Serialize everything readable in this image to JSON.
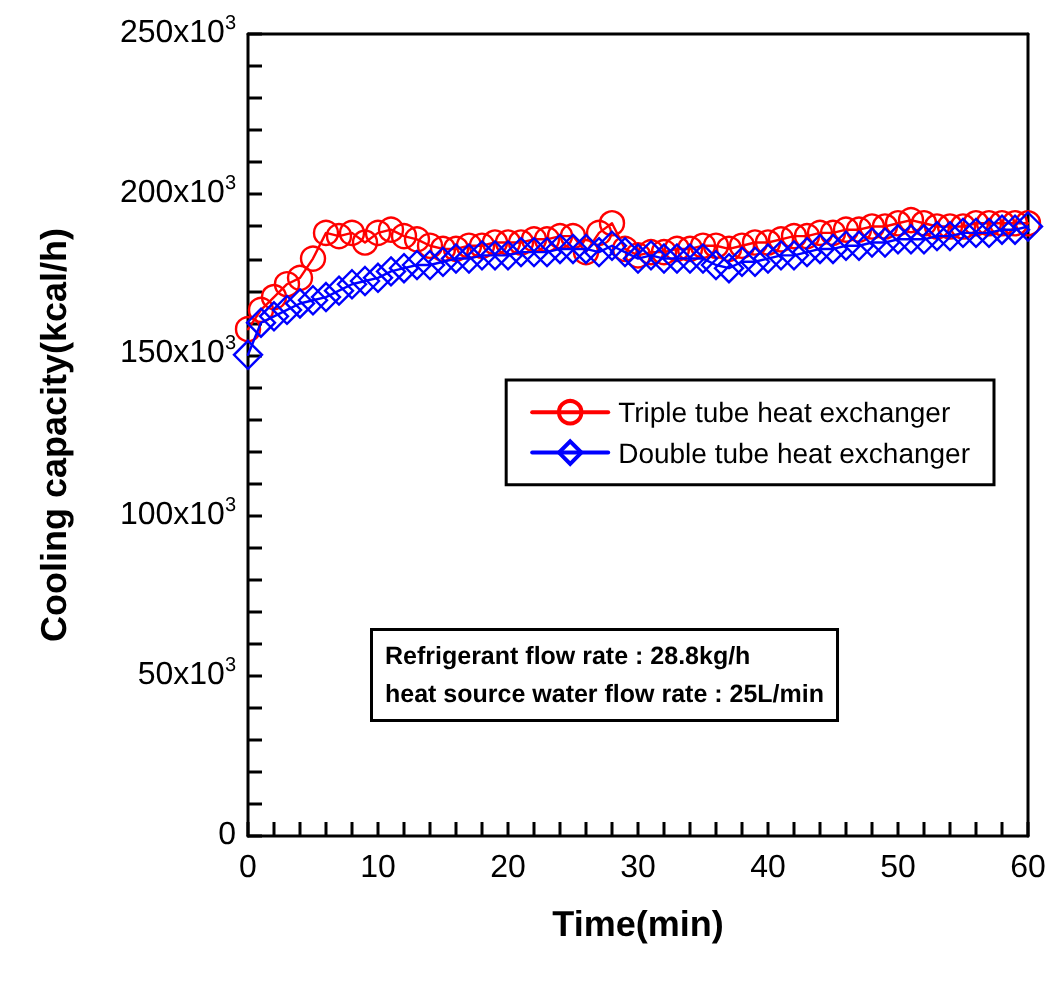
{
  "chart_data": {
    "type": "line",
    "xlabel": "Time(min)",
    "ylabel": "Cooling capacity(kcal/h)",
    "x": [
      0,
      1,
      2,
      3,
      4,
      5,
      6,
      7,
      8,
      9,
      10,
      11,
      12,
      13,
      14,
      15,
      16,
      17,
      18,
      19,
      20,
      21,
      22,
      23,
      24,
      25,
      26,
      27,
      28,
      29,
      30,
      31,
      32,
      33,
      34,
      35,
      36,
      37,
      38,
      39,
      40,
      41,
      42,
      43,
      44,
      45,
      46,
      47,
      48,
      49,
      50,
      51,
      52,
      53,
      54,
      55,
      56,
      57,
      58,
      59,
      60
    ],
    "series": [
      {
        "name": "Triple tube heat exchanger",
        "color": "#ff0000",
        "marker": "circle",
        "values": [
          158000,
          164000,
          168000,
          172000,
          174000,
          180000,
          188000,
          187000,
          188000,
          185000,
          188000,
          189000,
          187000,
          186000,
          184000,
          183000,
          183000,
          184000,
          184000,
          185000,
          185000,
          185000,
          186000,
          186000,
          187000,
          187000,
          182000,
          188000,
          191000,
          183000,
          181000,
          182000,
          182000,
          183000,
          183000,
          184000,
          184000,
          183000,
          184000,
          185000,
          185000,
          186000,
          187000,
          187000,
          188000,
          188000,
          189000,
          189000,
          190000,
          190000,
          191000,
          192000,
          191000,
          190000,
          190000,
          190000,
          191000,
          191000,
          191000,
          191000,
          191000
        ]
      },
      {
        "name": "Double tube heat exchanger",
        "color": "#0000ff",
        "marker": "diamond",
        "values": [
          150000,
          160000,
          162000,
          164000,
          166000,
          167000,
          168000,
          170000,
          172000,
          173000,
          174000,
          176000,
          177000,
          178000,
          178000,
          179000,
          180000,
          180000,
          181000,
          181000,
          181000,
          182000,
          182000,
          182000,
          183000,
          183000,
          183000,
          182000,
          184000,
          182000,
          180000,
          181000,
          180000,
          180000,
          180000,
          180000,
          178000,
          177000,
          179000,
          179000,
          180000,
          181000,
          181000,
          182000,
          183000,
          183000,
          184000,
          184000,
          185000,
          185000,
          186000,
          186000,
          186000,
          187000,
          187000,
          188000,
          188000,
          188000,
          189000,
          189000,
          190000
        ]
      }
    ],
    "xlim": [
      0,
      60
    ],
    "xticks": [
      0,
      10,
      20,
      30,
      40,
      50,
      60
    ],
    "ylim": [
      0,
      250000
    ],
    "yticks": [
      {
        "value": 0,
        "label": "0"
      },
      {
        "value": 50000,
        "label": "50x10$^{3}$"
      },
      {
        "value": 100000,
        "label": "100x10$^{3}$"
      },
      {
        "value": 150000,
        "label": "150x10$^{3}$"
      },
      {
        "value": 200000,
        "label": "200x10$^{3}$"
      },
      {
        "value": 250000,
        "label": "250x10$^{3}$"
      }
    ],
    "annotations": [
      "Refrigerant flow rate : 28.8kg/h",
      "heat source water flow rate : 25L/min"
    ],
    "legend": "center right",
    "grid": false,
    "line_style": "solid"
  }
}
